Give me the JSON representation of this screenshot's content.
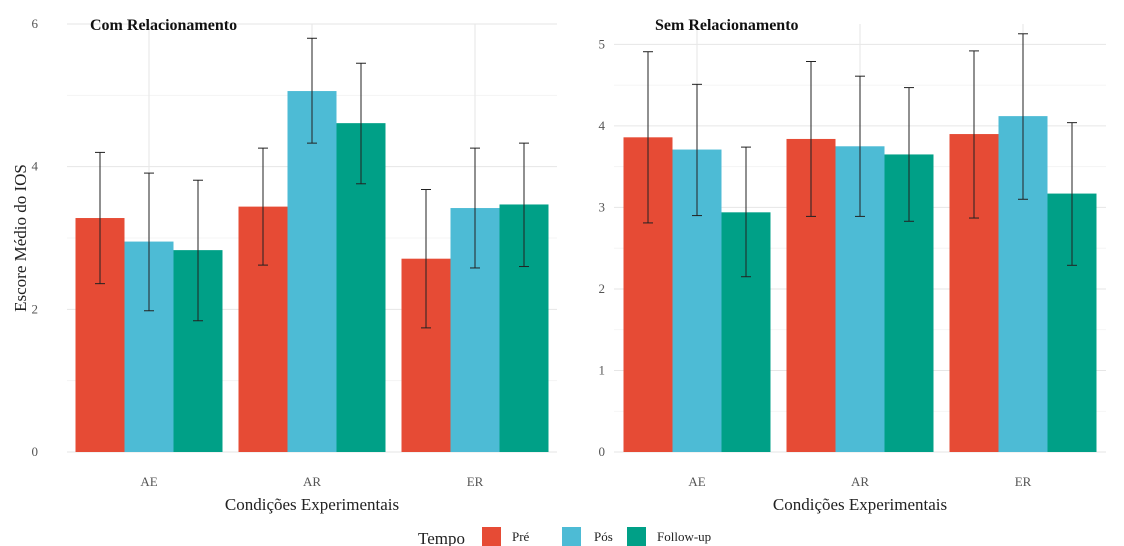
{
  "chart_data": [
    {
      "type": "bar",
      "title": "Com Relacionamento",
      "xlabel": "Condições Experimentais",
      "ylabel": "Escore Médio do IOS",
      "categories": [
        "AE",
        "AR",
        "ER"
      ],
      "ylim": [
        0,
        6
      ],
      "yticks": [
        0,
        2,
        4,
        6
      ],
      "series": [
        {
          "name": "Pré",
          "values": [
            3.28,
            3.44,
            2.71
          ],
          "err_low": [
            2.36,
            2.62,
            1.74
          ],
          "err_high": [
            4.2,
            4.26,
            3.68
          ]
        },
        {
          "name": "Pós",
          "values": [
            2.95,
            5.06,
            3.42
          ],
          "err_low": [
            1.98,
            4.33,
            2.58
          ],
          "err_high": [
            3.91,
            5.8,
            4.26
          ]
        },
        {
          "name": "Follow-up",
          "values": [
            2.83,
            4.61,
            3.47
          ],
          "err_low": [
            1.84,
            3.76,
            2.6
          ],
          "err_high": [
            3.81,
            5.45,
            4.33
          ]
        }
      ],
      "grid": true
    },
    {
      "type": "bar",
      "title": "Sem Relacionamento",
      "xlabel": "Condições Experimentais",
      "ylabel": "",
      "categories": [
        "AE",
        "AR",
        "ER"
      ],
      "ylim": [
        0,
        5.25
      ],
      "yticks": [
        0,
        1,
        2,
        3,
        4,
        5
      ],
      "series": [
        {
          "name": "Pré",
          "values": [
            3.86,
            3.84,
            3.9
          ],
          "err_low": [
            2.81,
            2.89,
            2.87
          ],
          "err_high": [
            4.91,
            4.79,
            4.92
          ]
        },
        {
          "name": "Pós",
          "values": [
            3.71,
            3.75,
            4.12
          ],
          "err_low": [
            2.9,
            2.89,
            3.1
          ],
          "err_high": [
            4.51,
            4.61,
            5.13
          ]
        },
        {
          "name": "Follow-up",
          "values": [
            2.94,
            3.65,
            3.17
          ],
          "err_low": [
            2.15,
            2.83,
            2.29
          ],
          "err_high": [
            3.74,
            4.47,
            4.04
          ]
        }
      ],
      "grid": true
    }
  ],
  "legend": {
    "title": "Tempo",
    "placement": "bottom",
    "items": [
      {
        "label": "Pré",
        "color": "#E64B35"
      },
      {
        "label": "Pós",
        "color": "#4DBBD5"
      },
      {
        "label": "Follow-up",
        "color": "#00A087"
      }
    ]
  },
  "colors": [
    "#E64B35",
    "#4DBBD5",
    "#00A087"
  ]
}
